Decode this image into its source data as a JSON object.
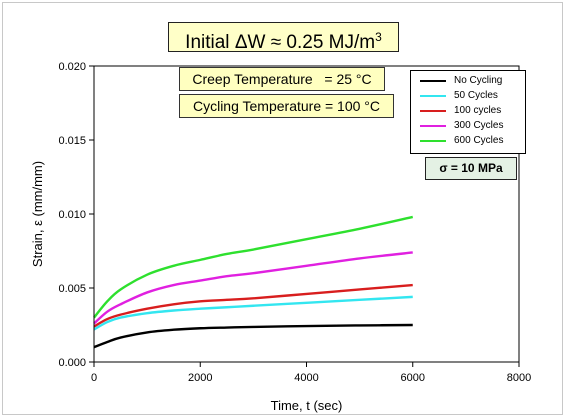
{
  "chart_data": {
    "type": "line",
    "title_prefix": "Initial ",
    "title_main": "ΔW ≈ 0.25 MJ/m",
    "title_sup": "3",
    "annotations": {
      "creep": "Creep Temperature   = 25 °C",
      "cycling": "Cycling Temperature = 100 °C",
      "stress": "σ = 10 MPa"
    },
    "xlabel": "Time, t (sec)",
    "ylabel": "Strain, ε (mm/mm)",
    "xlim": [
      0,
      8000
    ],
    "ylim": [
      0.0,
      0.02
    ],
    "x_ticks": [
      "0",
      "2000",
      "4000",
      "6000",
      "8000"
    ],
    "y_ticks": [
      "0.000",
      "0.005",
      "0.010",
      "0.015",
      "0.020"
    ],
    "legend_position": "top-right",
    "grid": false,
    "series": [
      {
        "name": "No Cycling",
        "color": "#000000",
        "x": [
          0,
          250,
          500,
          1000,
          1500,
          2000,
          2500,
          3000,
          4000,
          5000,
          6000
        ],
        "y": [
          0.001,
          0.00135,
          0.00165,
          0.002,
          0.00218,
          0.00228,
          0.00233,
          0.00237,
          0.00243,
          0.00247,
          0.0025
        ]
      },
      {
        "name": "50 Cycles",
        "color": "#33e6f0",
        "x": [
          0,
          250,
          500,
          1000,
          1500,
          2000,
          2500,
          3000,
          4000,
          5000,
          6000
        ],
        "y": [
          0.0022,
          0.0027,
          0.003,
          0.0033,
          0.00348,
          0.0036,
          0.0037,
          0.0038,
          0.004,
          0.0042,
          0.0044
        ]
      },
      {
        "name": "100 cycles",
        "color": "#d81e1e",
        "x": [
          0,
          250,
          500,
          1000,
          1500,
          2000,
          2500,
          3000,
          4000,
          5000,
          6000
        ],
        "y": [
          0.0024,
          0.0029,
          0.0032,
          0.0036,
          0.0039,
          0.0041,
          0.0042,
          0.0043,
          0.0046,
          0.0049,
          0.0052
        ]
      },
      {
        "name": "300 Cycles",
        "color": "#e020e0",
        "x": [
          0,
          250,
          500,
          1000,
          1500,
          2000,
          2500,
          3000,
          4000,
          5000,
          6000
        ],
        "y": [
          0.0026,
          0.0034,
          0.0039,
          0.0047,
          0.0052,
          0.0055,
          0.0058,
          0.006,
          0.0065,
          0.007,
          0.0074
        ]
      },
      {
        "name": "600 Cycles",
        "color": "#2ee02e",
        "x": [
          0,
          250,
          500,
          1000,
          1500,
          2000,
          2500,
          3000,
          4000,
          5000,
          6000
        ],
        "y": [
          0.003,
          0.0041,
          0.0049,
          0.0059,
          0.0065,
          0.0069,
          0.0073,
          0.0076,
          0.0083,
          0.009,
          0.0098
        ]
      }
    ]
  }
}
